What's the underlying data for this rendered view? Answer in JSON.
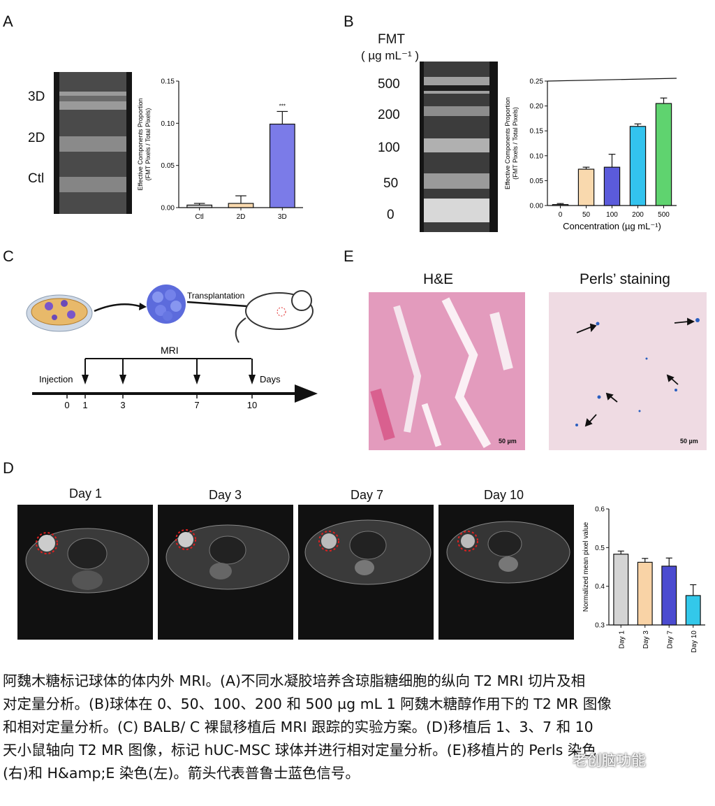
{
  "panels": {
    "a": {
      "label": "A",
      "gel_labels": [
        "3D",
        "2D",
        "Ctl"
      ]
    },
    "b": {
      "label": "B",
      "fmt_title": "FMT",
      "fmt_unit": "( µg mL⁻¹ )",
      "gel_labels": [
        "500",
        "200",
        "100",
        "50",
        "0"
      ]
    },
    "c": {
      "label": "C",
      "transplant_label": "Transplantation",
      "mri_label": "MRI",
      "injection_label": "Injection",
      "days_label": "Days",
      "timeline_ticks": [
        "0",
        "1",
        "3",
        "7",
        "10"
      ]
    },
    "d": {
      "label": "D",
      "day_titles": [
        "Day 1",
        "Day 3",
        "Day 7",
        "Day 10"
      ]
    },
    "e": {
      "label": "E",
      "he_title": "H&E",
      "perls_title": "Perls’ staining",
      "scale_bar": "50 µm"
    }
  },
  "chart_data": [
    {
      "type": "bar",
      "panel": "A",
      "categories": [
        "Ctl",
        "2D",
        "3D"
      ],
      "values": [
        0.003,
        0.005,
        0.099
      ],
      "errors": [
        0.002,
        0.009,
        0.015
      ],
      "ylabel": "Effective Components Proportion (FMT Pixels / Total Pixels)",
      "xlabel": "",
      "yticks": [
        "0.00",
        "0.05",
        "0.10",
        "0.15"
      ],
      "ylim": [
        0,
        0.15
      ],
      "annotation": "***",
      "colors": [
        "#cfcfcf",
        "#f9d9ae",
        "#7b7be8"
      ]
    },
    {
      "type": "bar",
      "panel": "B",
      "categories": [
        "0",
        "50",
        "100",
        "200",
        "500"
      ],
      "values": [
        0.002,
        0.073,
        0.077,
        0.159,
        0.205
      ],
      "errors": [
        0.002,
        0.004,
        0.026,
        0.005,
        0.011
      ],
      "ylabel": "Effective Components Proportion (FMT Pixels / Total Pixels)",
      "xlabel": "Concentration (µg mL⁻¹)",
      "yticks": [
        "0.00",
        "0.05",
        "0.10",
        "0.15",
        "0.20",
        "0.25"
      ],
      "ylim": [
        0,
        0.25
      ],
      "colors": [
        "#cfcfcf",
        "#f9d9ae",
        "#5b5bdb",
        "#33c3ee",
        "#5fd36f"
      ]
    },
    {
      "type": "bar",
      "panel": "D",
      "categories": [
        "Day 1",
        "Day 3",
        "Day 7",
        "Day 10"
      ],
      "values": [
        0.483,
        0.462,
        0.452,
        0.376
      ],
      "errors": [
        0.008,
        0.01,
        0.021,
        0.028
      ],
      "ylabel": "Normalized mean pixel value",
      "xlabel": "",
      "yticks": [
        "0.3",
        "0.4",
        "0.5",
        "0.6"
      ],
      "ylim": [
        0.3,
        0.6
      ],
      "colors": [
        "#d4d4d4",
        "#f9d3a6",
        "#4b4bd0",
        "#33c8ea"
      ]
    }
  ],
  "caption": {
    "lines": [
      "阿魏木糖标记球体的体内外 MRI。(A)不同水凝胶培养含琼脂糖细胞的纵向 T2 MRI 切片及相",
      "对定量分析。(B)球体在 0、50、100、200 和 500 µg mL 1 阿魏木糖醇作用下的 T2 MR 图像",
      "和相对定量分析。(C) BALB/ C 裸鼠移植后 MRI 跟踪的实验方案。(D)移植后 1、3、7 和 10",
      "天小鼠轴向 T2 MR 图像，标记 hUC-MSC 球体并进行相对定量分析。(E)移植片的 Perls 染色",
      "(右)和 H&amp;E 染色(左)。箭头代表普鲁士蓝色信号。"
    ]
  },
  "watermark": "老创脑功能",
  "colors": {
    "bar_outline": "#111111",
    "dashed_circle": "#e02020"
  }
}
